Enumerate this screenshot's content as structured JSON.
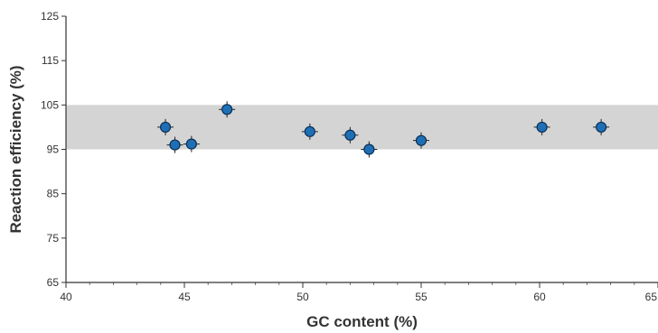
{
  "chart_data": {
    "type": "scatter",
    "title": "",
    "xlabel": "GC content (%)",
    "ylabel": "Reaction efficiency (%)",
    "xlim": [
      40,
      65
    ],
    "ylim": [
      65,
      125
    ],
    "x_ticks": [
      40,
      45,
      50,
      55,
      60,
      65
    ],
    "y_ticks": [
      65,
      75,
      85,
      95,
      105,
      115,
      125
    ],
    "grid": false,
    "acceptance_band": {
      "y_from": 95,
      "y_to": 105,
      "color": "#d4d4d4"
    },
    "series": [
      {
        "points": [
          {
            "x": 44.2,
            "y": 100
          },
          {
            "x": 44.6,
            "y": 96
          },
          {
            "x": 45.3,
            "y": 96.2
          },
          {
            "x": 46.8,
            "y": 104
          },
          {
            "x": 50.3,
            "y": 99
          },
          {
            "x": 52.0,
            "y": 98.2
          },
          {
            "x": 52.8,
            "y": 95
          },
          {
            "x": 55.0,
            "y": 97
          },
          {
            "x": 60.1,
            "y": 100
          },
          {
            "x": 62.6,
            "y": 100
          }
        ],
        "color": "#1f6fb5",
        "marker": "circle"
      }
    ]
  }
}
